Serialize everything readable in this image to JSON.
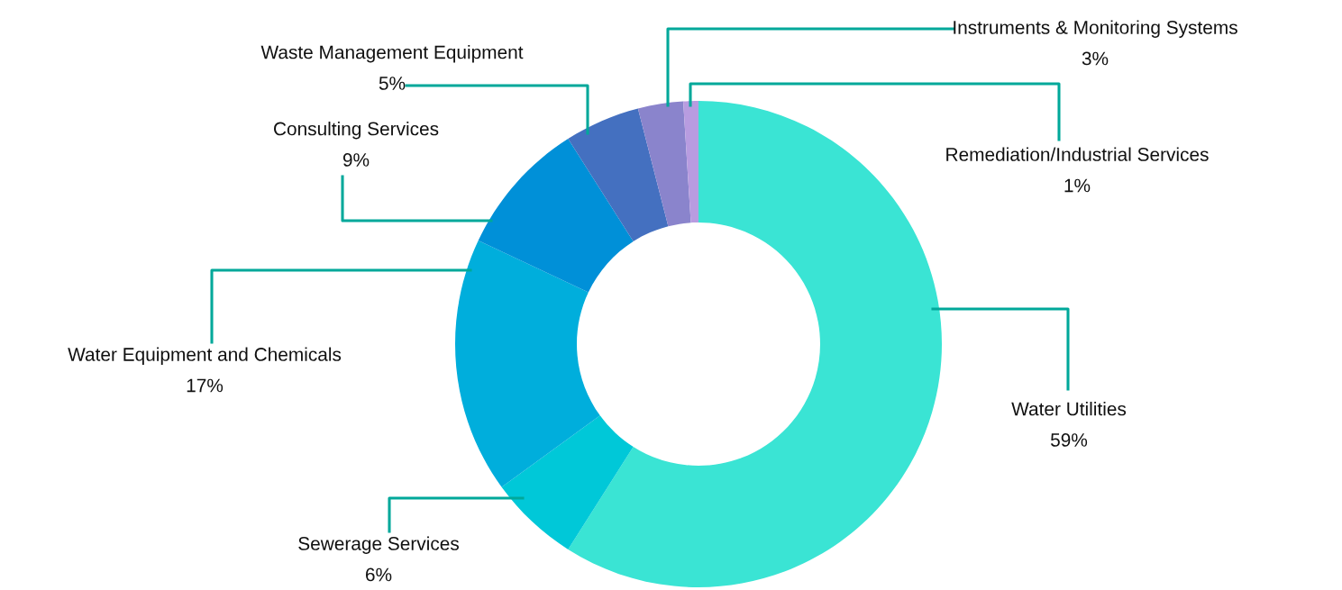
{
  "chart_data": {
    "type": "donut",
    "categories": [
      "Water Utilities",
      "Sewerage Services",
      "Water Equipment and Chemicals",
      "Consulting Services",
      "Waste Management Equipment",
      "Instruments & Monitoring Systems",
      "Remediation/Industrial Services"
    ],
    "values": [
      59,
      6,
      17,
      9,
      5,
      3,
      1
    ],
    "value_labels": [
      "59%",
      "6%",
      "17%",
      "9%",
      "5%",
      "3%",
      "1%"
    ],
    "colors": [
      "#3ae4d4",
      "#00c8d8",
      "#00aedc",
      "#0090d8",
      "#4470c0",
      "#8a84cc",
      "#b89ce0"
    ],
    "legend": false
  }
}
